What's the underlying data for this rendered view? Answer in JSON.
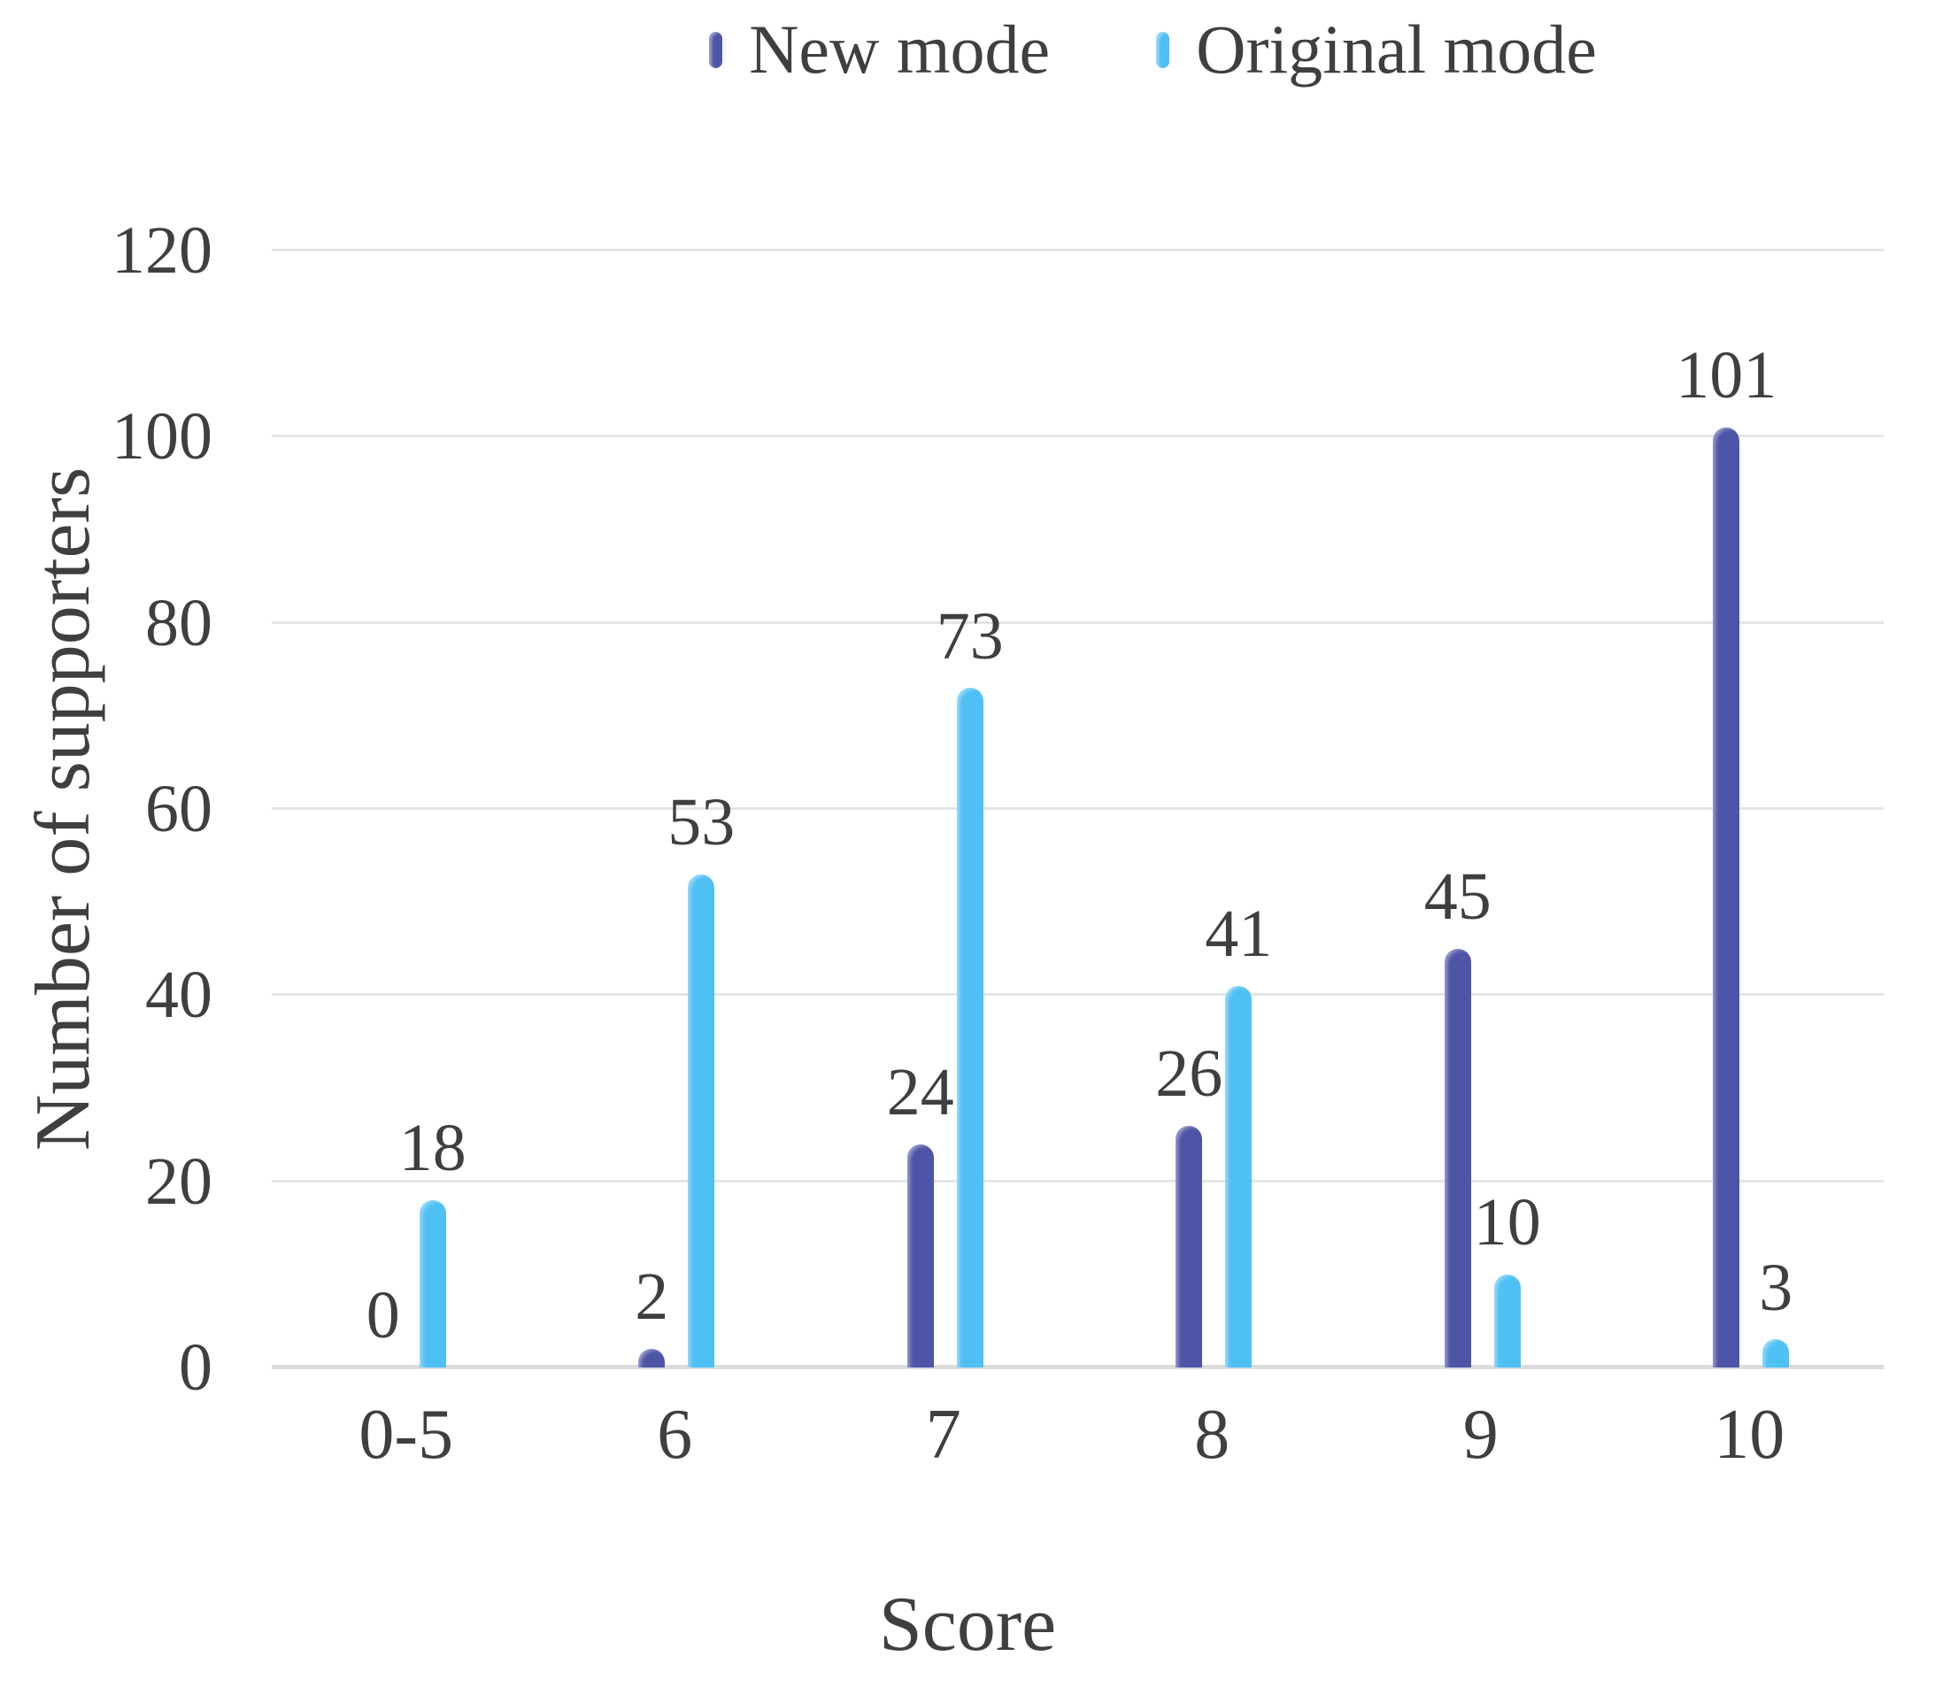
{
  "legend": {
    "items": [
      {
        "label": "New mode",
        "color": "#4E54A6"
      },
      {
        "label": "Original mode",
        "color": "#4FC0F4"
      }
    ]
  },
  "chart_data": {
    "type": "bar",
    "title": "",
    "categories": [
      "0-5",
      "6",
      "7",
      "8",
      "9",
      "10"
    ],
    "series": [
      {
        "name": "New mode",
        "color": "#4E54A6",
        "values": [
          0,
          2,
          24,
          26,
          45,
          101
        ]
      },
      {
        "name": "Original mode",
        "color": "#4FC0F4",
        "values": [
          18,
          53,
          73,
          41,
          10,
          3
        ]
      }
    ],
    "xlabel": "Score",
    "ylabel": "Number of supporters",
    "ylim": [
      0,
      120
    ],
    "yticks": [
      0,
      20,
      40,
      60,
      80,
      100,
      120
    ],
    "grid": true,
    "legend_position": "top",
    "value_labels": true
  },
  "colors": {
    "text": "#3F3F3F",
    "gridline": "#E5E5E5",
    "axis_line": "#DCDCDC",
    "background": "#FFFFFF"
  }
}
